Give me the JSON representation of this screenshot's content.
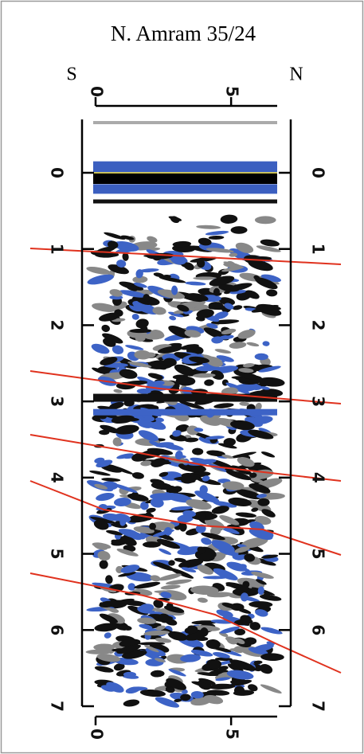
{
  "chart_data": {
    "type": "radargram",
    "title": "N. Amram 35/24",
    "left_label": "S",
    "right_label": "N",
    "xlim": [
      0,
      6.7
    ],
    "xticks": [
      0,
      5
    ],
    "ylim": [
      -0.7,
      7
    ],
    "yticks": [
      0,
      1,
      2,
      3,
      4,
      5,
      6,
      7
    ]
  }
}
